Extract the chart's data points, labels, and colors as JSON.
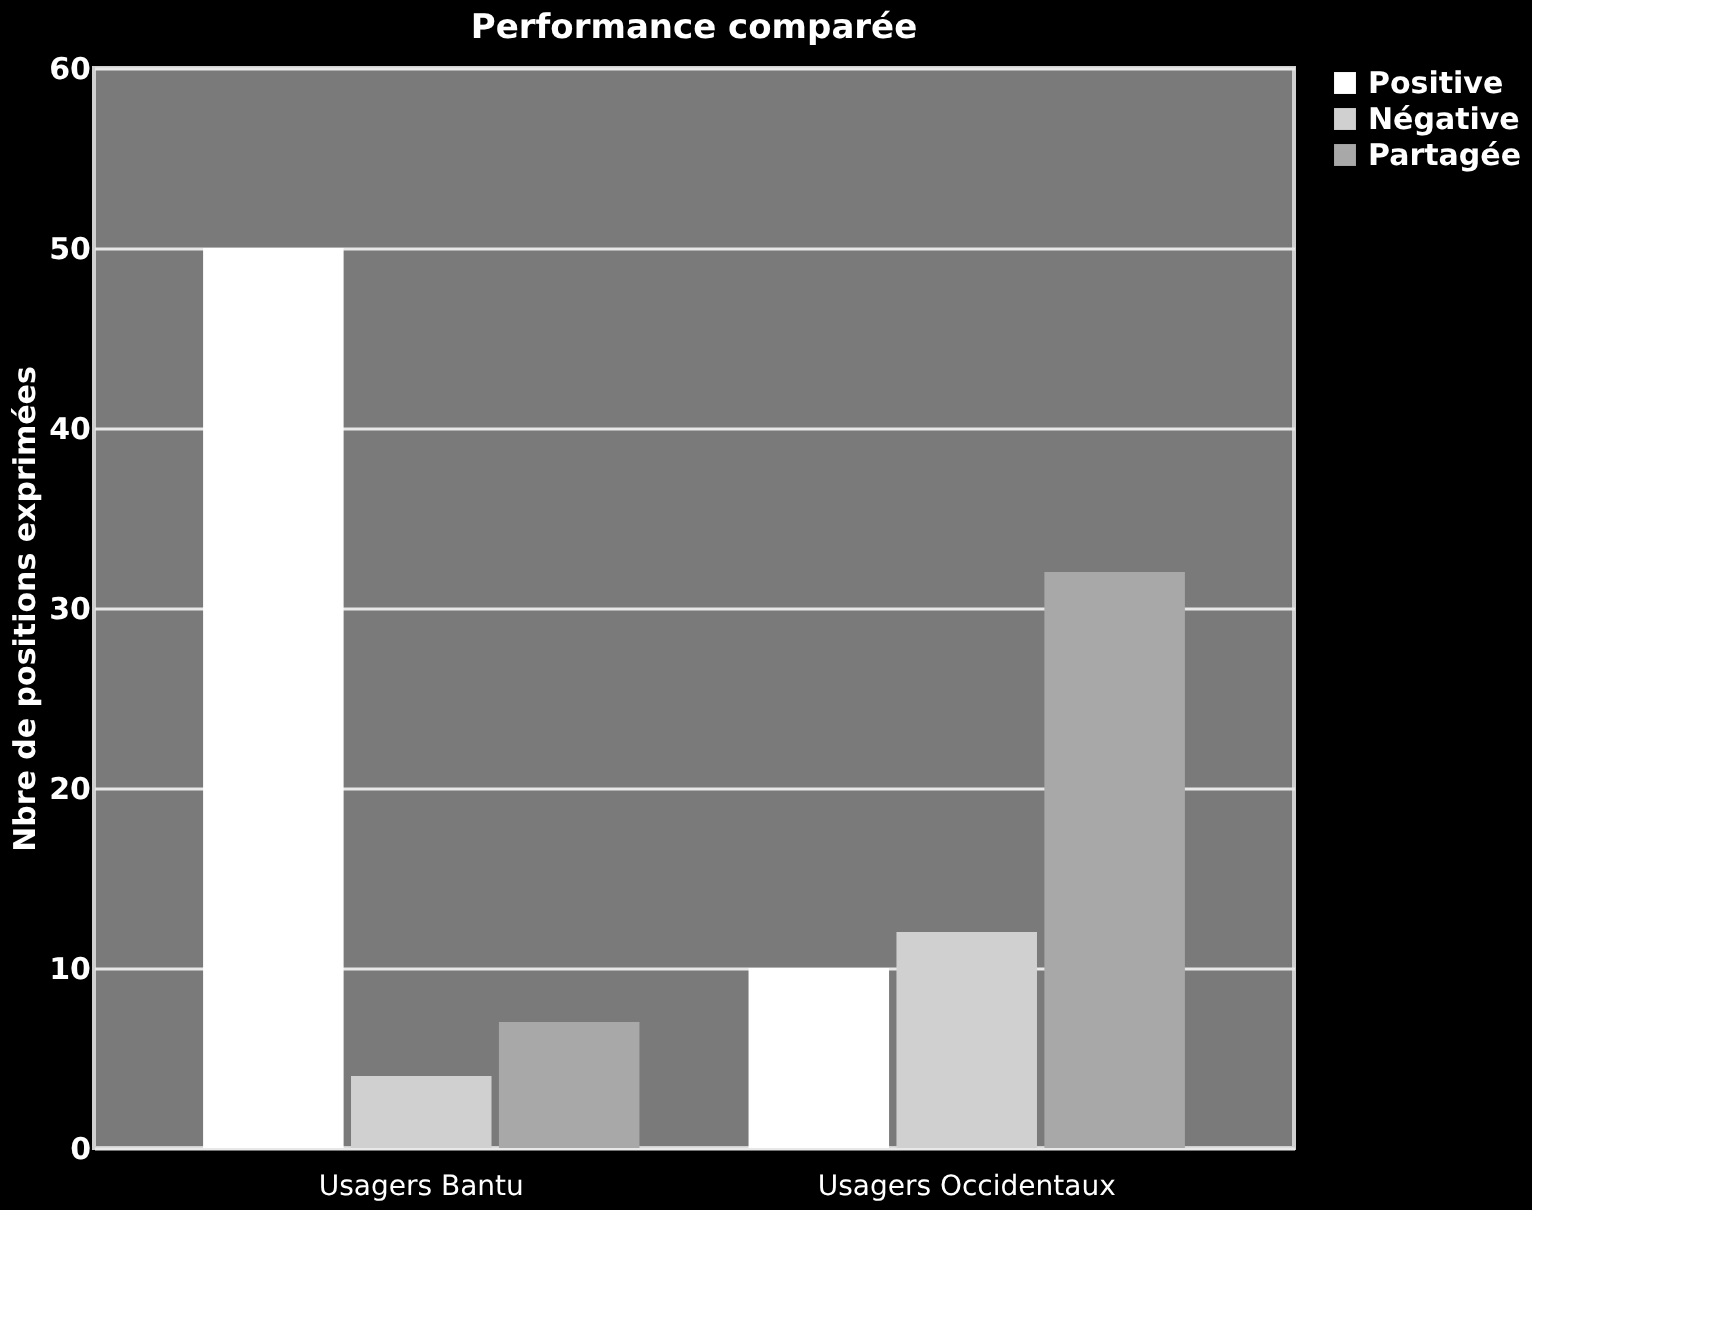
{
  "chart_data": {
    "type": "bar",
    "title": "Performance comparée",
    "ylabel": "Nbre de positions exprimées",
    "categories": [
      "Usagers Bantu",
      "Usagers Occidentaux"
    ],
    "series": [
      {
        "name": "Positive",
        "color": "#ffffff",
        "values": [
          50,
          10
        ]
      },
      {
        "name": "Négative",
        "color": "#d0d0d0",
        "values": [
          4,
          12
        ]
      },
      {
        "name": "Partagée",
        "color": "#a8a8a8",
        "values": [
          7,
          32
        ]
      }
    ],
    "ylim": [
      0,
      60
    ],
    "yticks": [
      0,
      10,
      20,
      30,
      40,
      50,
      60
    ],
    "grid": "y",
    "legend": "right"
  }
}
